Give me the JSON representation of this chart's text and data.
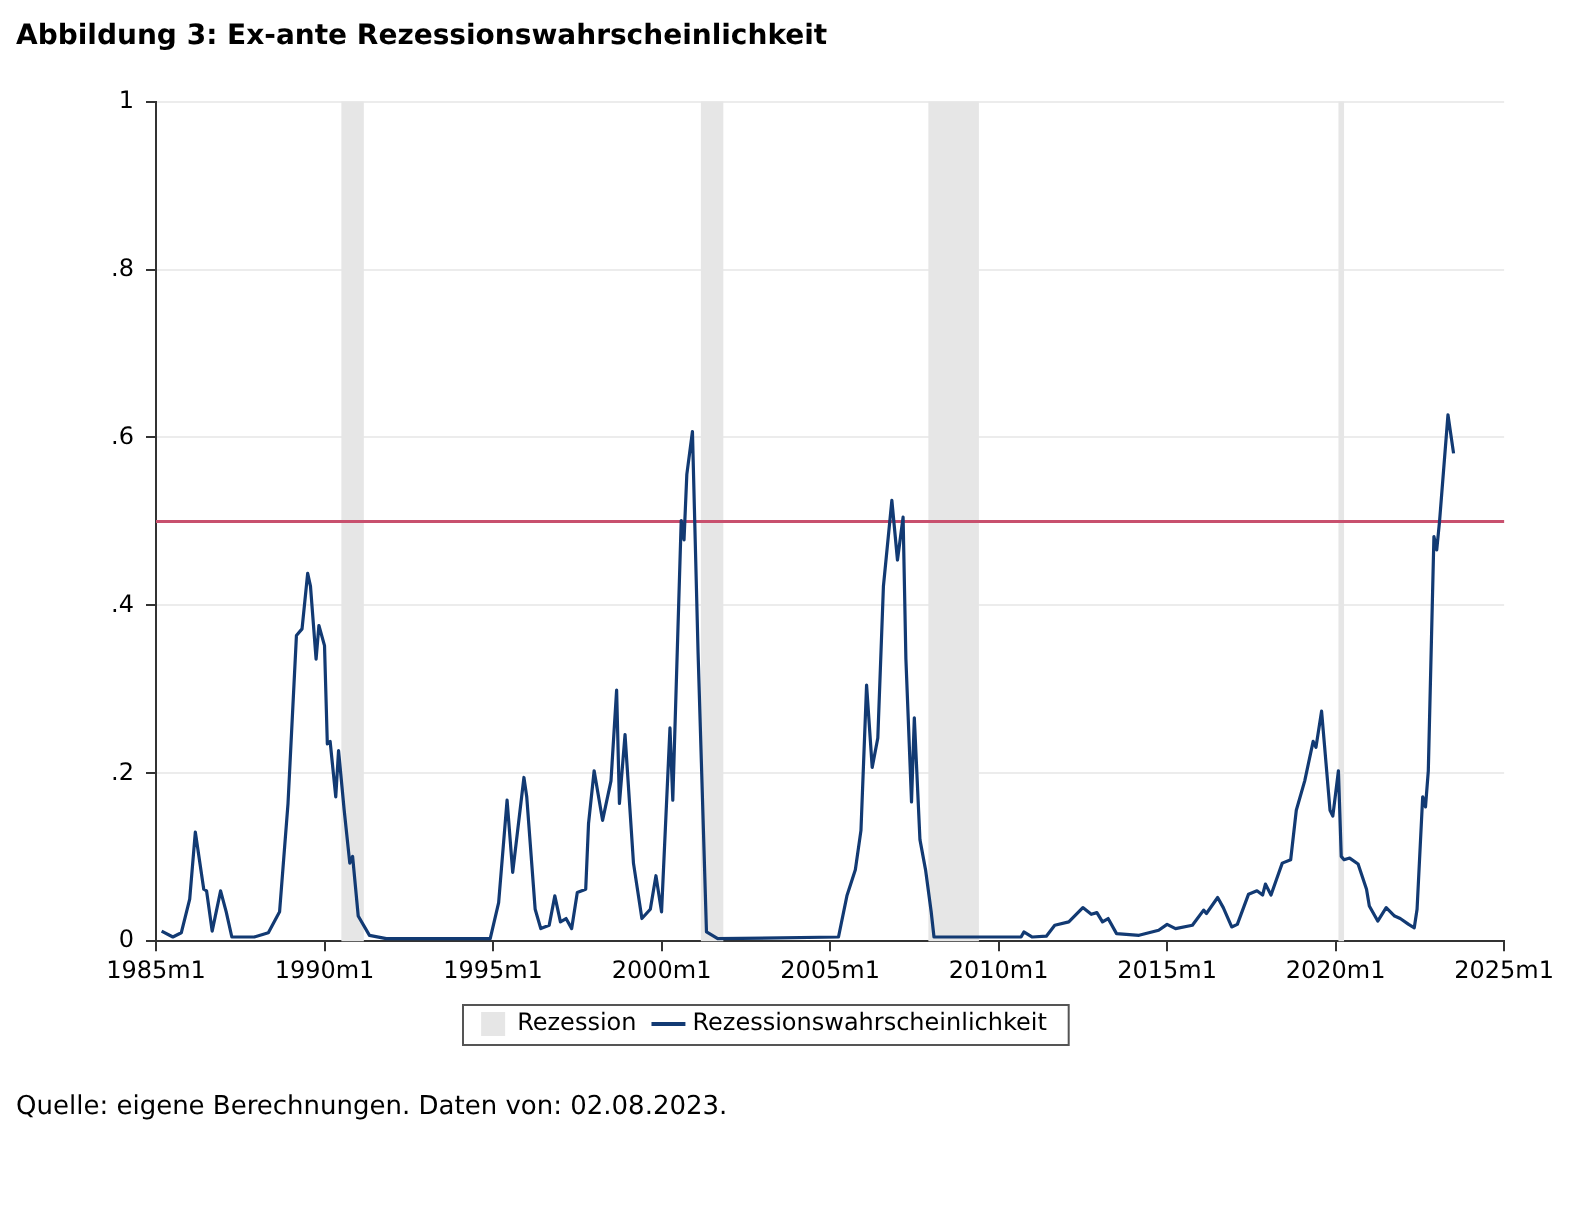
{
  "chart_data": {
    "type": "line",
    "title": "Abbildung 3: Ex-ante Rezessionswahrscheinlichkeit",
    "xlim": [
      "1985-01",
      "2025-01"
    ],
    "xticks": [
      {
        "value": "1985-01",
        "label": "1985m1"
      },
      {
        "value": "1990-01",
        "label": "1990m1"
      },
      {
        "value": "1995-01",
        "label": "1995m1"
      },
      {
        "value": "2000-01",
        "label": "2000m1"
      },
      {
        "value": "2005-01",
        "label": "2005m1"
      },
      {
        "value": "2010-01",
        "label": "2010m1"
      },
      {
        "value": "2015-01",
        "label": "2015m1"
      },
      {
        "value": "2020-01",
        "label": "2020m1"
      },
      {
        "value": "2025-01",
        "label": "2025m1"
      }
    ],
    "ylim": [
      0,
      1
    ],
    "yticks": [
      0,
      {
        "value": 0.2,
        "label": ".2"
      },
      {
        "value": 0.4,
        "label": ".4"
      },
      {
        "value": 0.6,
        "label": ".6"
      },
      {
        "value": 0.8,
        "label": ".8"
      },
      1
    ],
    "grid": "y",
    "legend": "bottom",
    "series": [
      {
        "name": "Rezessionswahrscheinlichkeit",
        "color": "#123a73",
        "x": [
          "1985-03",
          "1985-07",
          "1985-10",
          "1986-01",
          "1986-03",
          "1986-06",
          "1986-07",
          "1986-09",
          "1986-12",
          "1987-02",
          "1987-04",
          "1987-12",
          "1988-05",
          "1988-09",
          "1988-12",
          "1989-03",
          "1989-05",
          "1989-07",
          "1989-08",
          "1989-10",
          "1989-11",
          "1990-01",
          "1990-02",
          "1990-03",
          "1990-05",
          "1990-06",
          "1990-08",
          "1990-10",
          "1990-11",
          "1991-01",
          "1991-05",
          "1991-11",
          "1994-12",
          "1995-03",
          "1995-06",
          "1995-08",
          "1995-12",
          "1996-01",
          "1996-04",
          "1996-06",
          "1996-09",
          "1996-11",
          "1997-01",
          "1997-03",
          "1997-05",
          "1997-07",
          "1997-10",
          "1997-11",
          "1998-01",
          "1998-04",
          "1998-07",
          "1998-09",
          "1998-10",
          "1998-12",
          "1999-03",
          "1999-06",
          "1999-09",
          "1999-11",
          "2000-01",
          "2000-04",
          "2000-05",
          "2000-08",
          "2000-09",
          "2000-10",
          "2000-12",
          "2001-02",
          "2001-05",
          "2001-09",
          "2005-04",
          "2005-07",
          "2005-10",
          "2005-12",
          "2006-02",
          "2006-04",
          "2006-06",
          "2006-08",
          "2006-11",
          "2007-01",
          "2007-03",
          "2007-04",
          "2007-06",
          "2007-07",
          "2007-09",
          "2007-11",
          "2008-01",
          "2008-02",
          "2010-09",
          "2010-10",
          "2011-01",
          "2011-06",
          "2011-09",
          "2012-02",
          "2012-07",
          "2012-10",
          "2012-12",
          "2013-02",
          "2013-04",
          "2013-07",
          "2014-03",
          "2014-10",
          "2015-01",
          "2015-04",
          "2015-10",
          "2016-02",
          "2016-03",
          "2016-07",
          "2016-09",
          "2016-12",
          "2017-02",
          "2017-06",
          "2017-09",
          "2017-11",
          "2017-12",
          "2018-02",
          "2018-04",
          "2018-06",
          "2018-09",
          "2018-11",
          "2019-02",
          "2019-05",
          "2019-06",
          "2019-08",
          "2019-09",
          "2019-11",
          "2019-12",
          "2020-02",
          "2020-03",
          "2020-04",
          "2020-06",
          "2020-09",
          "2020-12",
          "2021-01",
          "2021-04",
          "2021-07",
          "2021-10",
          "2021-12",
          "2022-03",
          "2022-05",
          "2022-06",
          "2022-08",
          "2022-09",
          "2022-10",
          "2022-12",
          "2023-01",
          "2023-02",
          "2023-05",
          "2023-07"
        ],
        "values": [
          0.012,
          0.005,
          0.01,
          0.05,
          0.13,
          0.062,
          0.06,
          0.012,
          0.06,
          0.035,
          0.005,
          0.005,
          0.01,
          0.035,
          0.164,
          0.364,
          0.372,
          0.438,
          0.423,
          0.336,
          0.376,
          0.352,
          0.235,
          0.238,
          0.172,
          0.227,
          0.156,
          0.093,
          0.101,
          0.03,
          0.007,
          0.003,
          0.003,
          0.046,
          0.168,
          0.082,
          0.195,
          0.172,
          0.038,
          0.015,
          0.019,
          0.054,
          0.023,
          0.027,
          0.015,
          0.058,
          0.062,
          0.14,
          0.203,
          0.144,
          0.191,
          0.299,
          0.164,
          0.246,
          0.093,
          0.027,
          0.038,
          0.078,
          0.035,
          0.254,
          0.168,
          0.501,
          0.478,
          0.556,
          0.607,
          0.344,
          0.011,
          0.003,
          0.005,
          0.054,
          0.085,
          0.132,
          0.305,
          0.207,
          0.242,
          0.423,
          0.525,
          0.454,
          0.505,
          0.336,
          0.166,
          0.266,
          0.121,
          0.085,
          0.035,
          0.005,
          0.005,
          0.011,
          0.005,
          0.006,
          0.019,
          0.023,
          0.04,
          0.032,
          0.034,
          0.023,
          0.027,
          0.009,
          0.007,
          0.013,
          0.02,
          0.015,
          0.019,
          0.037,
          0.033,
          0.052,
          0.04,
          0.017,
          0.02,
          0.056,
          0.06,
          0.055,
          0.068,
          0.055,
          0.074,
          0.093,
          0.097,
          0.156,
          0.191,
          0.238,
          0.231,
          0.274,
          0.235,
          0.156,
          0.149,
          0.203,
          0.101,
          0.097,
          0.099,
          0.092,
          0.062,
          0.042,
          0.024,
          0.04,
          0.03,
          0.027,
          0.02,
          0.016,
          0.038,
          0.172,
          0.16,
          0.203,
          0.482,
          0.466,
          0.5,
          0.627,
          0.581
        ]
      }
    ],
    "bands": [
      {
        "axis": "x",
        "from": "1990-07",
        "to": "1991-03",
        "label": "Rezession",
        "color": "#e6e6e6"
      },
      {
        "axis": "x",
        "from": "2001-03",
        "to": "2001-11",
        "color": "#e6e6e6"
      },
      {
        "axis": "x",
        "from": "2007-12",
        "to": "2009-06",
        "color": "#e6e6e6"
      },
      {
        "axis": "x",
        "from": "2020-02",
        "to": "2020-04",
        "color": "#e6e6e6"
      }
    ],
    "ref_lines": [
      {
        "axis": "y",
        "value": 0.5,
        "color": "#c8506e"
      }
    ],
    "annotations": [
      "Quelle: eigene Berechnungen. Daten von: 02.08.2023."
    ]
  }
}
